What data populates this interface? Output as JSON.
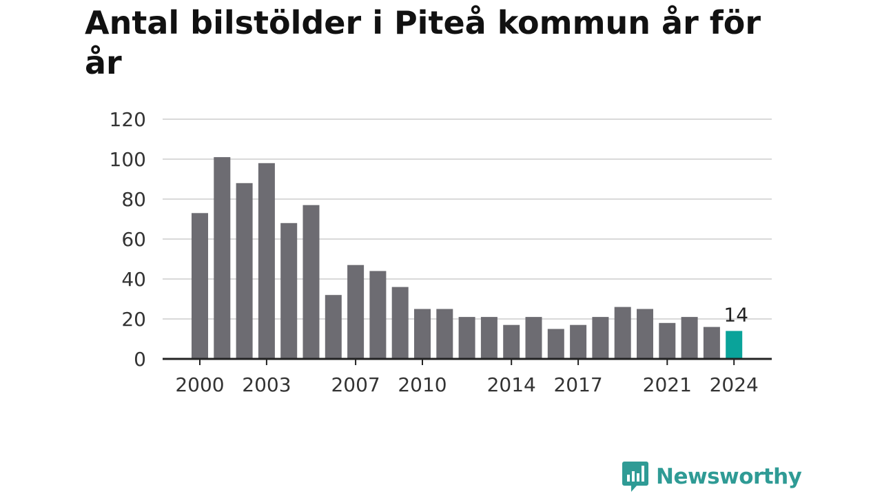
{
  "title": "Antal bilstölder i Piteå kommun år för år",
  "brand": {
    "name": "Newsworthy",
    "color": "#2f9b95",
    "icon": "newsworthy-logo-icon"
  },
  "colors": {
    "bar": "#6d6c72",
    "highlight": "#0aa39a",
    "grid": "#d9d9d9",
    "axis": "#222222"
  },
  "chart_data": {
    "type": "bar",
    "title": "Antal bilstölder i Piteå kommun år för år",
    "xlabel": "",
    "ylabel": "",
    "categories": [
      2000,
      2001,
      2002,
      2003,
      2004,
      2005,
      2006,
      2007,
      2008,
      2009,
      2010,
      2011,
      2012,
      2013,
      2014,
      2015,
      2016,
      2017,
      2018,
      2019,
      2020,
      2021,
      2022,
      2023,
      2024
    ],
    "values": [
      73,
      101,
      88,
      98,
      68,
      77,
      32,
      47,
      44,
      36,
      25,
      25,
      21,
      21,
      17,
      21,
      15,
      17,
      21,
      26,
      25,
      18,
      21,
      16,
      14
    ],
    "ylim": [
      0,
      120
    ],
    "yticks": [
      0,
      20,
      40,
      60,
      80,
      100,
      120
    ],
    "xtick_labels": [
      2000,
      2003,
      2007,
      2010,
      2014,
      2017,
      2021,
      2024
    ],
    "highlight": {
      "category": 2024,
      "label": "14"
    },
    "grid": true
  }
}
